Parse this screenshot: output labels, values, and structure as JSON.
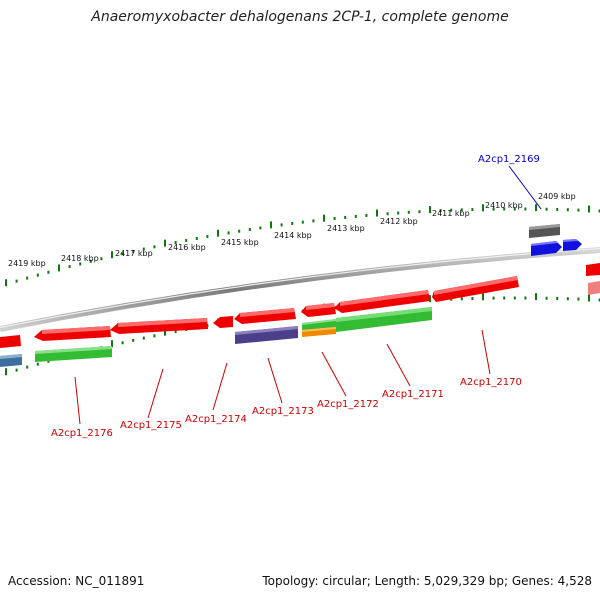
{
  "title": "Anaeromyxobacter dehalogenans 2CP-1, complete genome",
  "footer": {
    "accession": "Accession: NC_011891",
    "summary": "Topology: circular; Length: 5,029,329 bp; Genes: 4,528"
  },
  "scale_labels": [
    "2409 kbp",
    "2410 kbp",
    "2411 kbp",
    "2412 kbp",
    "2413 kbp",
    "2414 kbp",
    "2415 kbp",
    "2416 kbp",
    "2417 kbp",
    "2418 kbp",
    "2419 kbp"
  ],
  "gene_labels": [
    "A2cp1_2169",
    "A2cp1_2170",
    "A2cp1_2171",
    "A2cp1_2172",
    "A2cp1_2173",
    "A2cp1_2174",
    "A2cp1_2175",
    "A2cp1_2176"
  ],
  "colors": {
    "cds_red": "#ee0000",
    "cds_green": "#33bb33",
    "cds_purple": "#4b3f8a",
    "cds_orange": "#f08a00",
    "cds_blue": "#1111dd",
    "cds_gray": "#555555",
    "cds_pink": "#f08080",
    "cds_steel": "#3a6fa0",
    "tick_green": "#117711",
    "label_red": "#cc0000",
    "label_blue": "#0000cc"
  }
}
